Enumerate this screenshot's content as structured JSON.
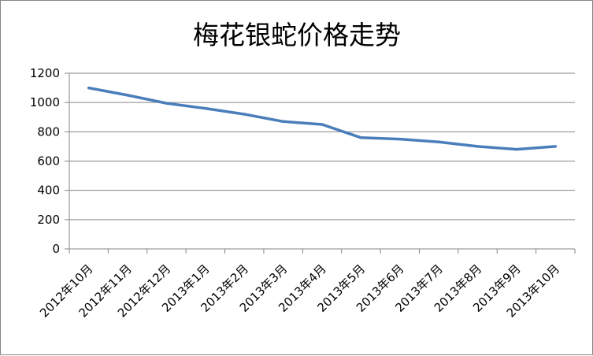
{
  "chart_data": {
    "type": "line",
    "title": "梅花银蛇价格走势",
    "xlabel": "",
    "ylabel": "",
    "categories": [
      "2012年10月",
      "2012年11月",
      "2012年12月",
      "2013年1月",
      "2013年2月",
      "2013年3月",
      "2013年4月",
      "2013年5月",
      "2013年6月",
      "2013年7月",
      "2013年8月",
      "2013年9月",
      "2013年10月"
    ],
    "series": [
      {
        "values": [
          1100,
          1050,
          995,
          960,
          920,
          870,
          850,
          760,
          750,
          730,
          700,
          680,
          700
        ]
      }
    ],
    "ylim": [
      0,
      1200
    ],
    "yticks": [
      0,
      200,
      400,
      600,
      800,
      1000,
      1200
    ],
    "grid": true,
    "legend": "none",
    "line_color": "#4A7EBB"
  }
}
